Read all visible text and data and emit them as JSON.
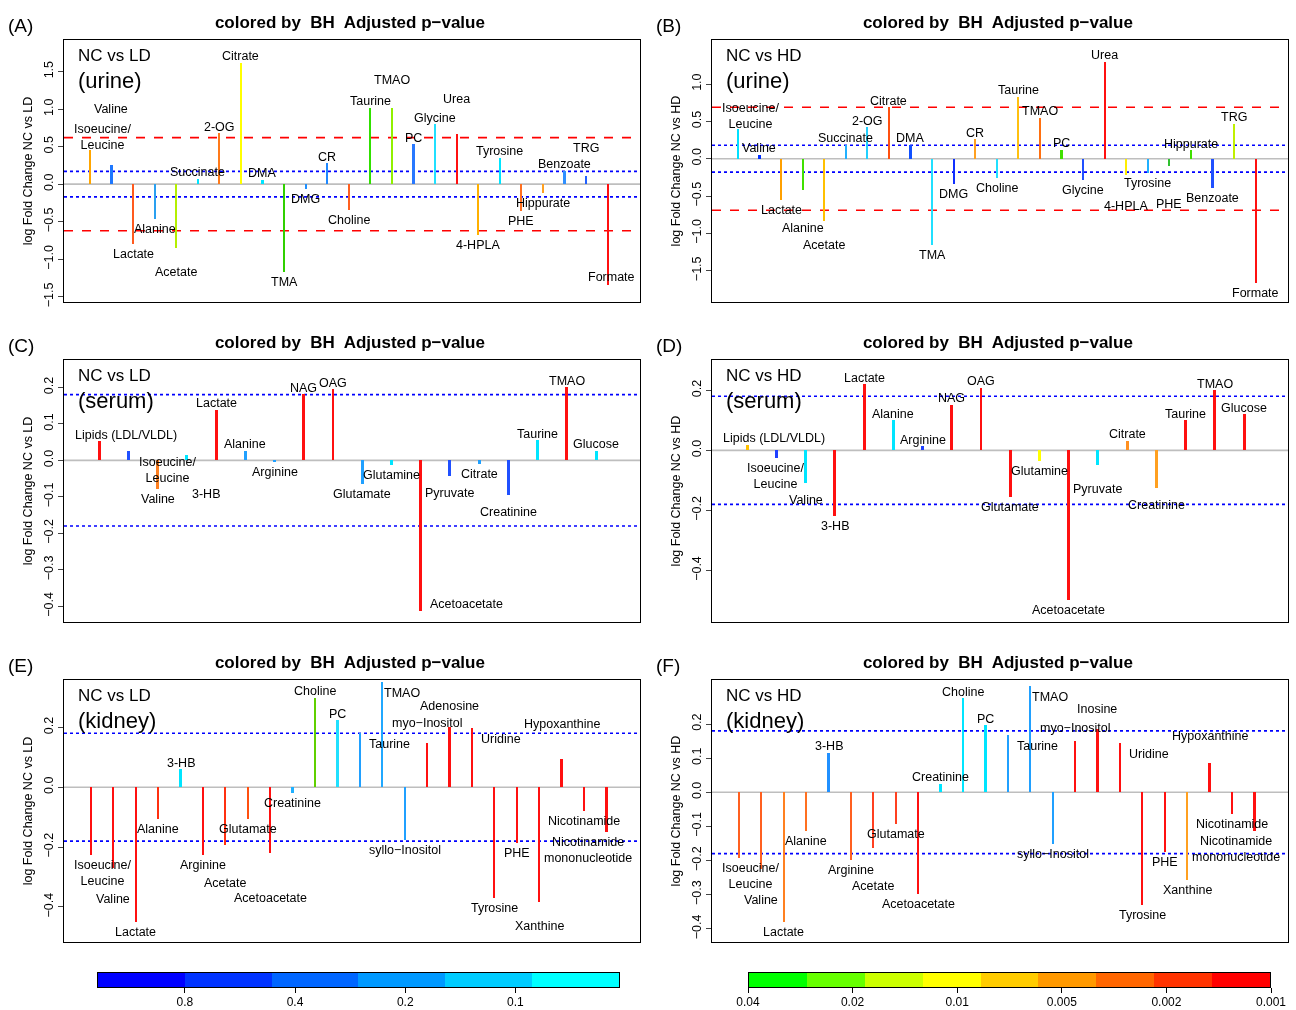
{
  "chart_data": [
    {
      "type": "bar",
      "title": "colored by  BH  Adjusted p−value",
      "ylabel": "log Fold Change NC vs LD",
      "annotations": [
        "(A)",
        "NC vs LD",
        "(urine)"
      ],
      "categories": [
        "Isoeucine/\nLeucine",
        "Valine",
        "Lactate",
        "Alanine",
        "Acetate",
        "Succinate",
        "2-OG",
        "Citrate",
        "DMA",
        "TMA",
        "DMG",
        "CR",
        "Choline",
        "Taurine",
        "TMAO",
        "PC",
        "Glycine",
        "Urea",
        "4-HPLA",
        "Tyrosine",
        "PHE",
        "Hippurate",
        "Benzoate",
        "TRG",
        "Formate"
      ],
      "values": [
        0.45,
        0.26,
        -0.8,
        -0.46,
        -0.85,
        0.07,
        0.68,
        1.62,
        0.06,
        -1.17,
        -0.07,
        0.28,
        -0.35,
        1.02,
        1.02,
        0.53,
        0.8,
        0.67,
        -0.68,
        0.35,
        -0.36,
        -0.12,
        0.18,
        0.11,
        -1.34
      ],
      "colors": [
        "#ffa500",
        "#1e78ff",
        "#ff5a1e",
        "#2aa0f0",
        "#b4f000",
        "#00e5ff",
        "#ff7a1a",
        "#ffff00",
        "#00e5ff",
        "#30d000",
        "#2090ff",
        "#1e88ff",
        "#ff6020",
        "#30e000",
        "#90f000",
        "#2878ff",
        "#20e0ff",
        "#ff1010",
        "#ffb000",
        "#00e5ff",
        "#ff7020",
        "#ffa020",
        "#3090ff",
        "#2060ff",
        "#ff1010"
      ],
      "ylim": [
        -1.57,
        1.92
      ],
      "yticks": [
        -1.5,
        {
          "value": -1,
          "label": "−1.0"
        },
        -0.5,
        {
          "value": 0,
          "label": "0.0"
        },
        0.5,
        {
          "value": 1,
          "label": "1.0"
        },
        1.5
      ],
      "tick_labels": "y",
      "ref_lines": [
        {
          "axis": "y",
          "value": 0,
          "color": "#bebebe",
          "line_style": "solid"
        },
        {
          "axis": "y",
          "value": 0.62,
          "color": "#ff0000",
          "line_style": "dashed"
        },
        {
          "axis": "y",
          "value": -0.62,
          "color": "#ff0000",
          "line_style": "dashed"
        },
        {
          "axis": "y",
          "value": 0.17,
          "color": "#0000ff",
          "line_style": "dotted"
        },
        {
          "axis": "y",
          "value": -0.17,
          "color": "#0000ff",
          "line_style": "dotted"
        }
      ]
    },
    {
      "type": "bar",
      "title": "colored by  BH  Adjusted p−value",
      "ylabel": "log Fold Change NC vs HD",
      "annotations": [
        "(B)",
        "NC vs HD",
        "(urine)"
      ],
      "categories": [
        "Isoeucine/\nLeucine",
        "Valine",
        "Lactate",
        "Alanine",
        "Acetate",
        "Succinate",
        "2-OG",
        "Citrate",
        "DMA",
        "TMA",
        "DMG",
        "CR",
        "Choline",
        "Taurine",
        "TMAO",
        "PC",
        "Glycine",
        "Urea",
        "4-HPLA",
        "Tyrosine",
        "PHE",
        "Hippurate",
        "Benzoate",
        "TRG",
        "Formate"
      ],
      "values": [
        0.4,
        0.05,
        -0.56,
        -0.42,
        -0.84,
        0.19,
        0.42,
        0.69,
        0.19,
        -1.15,
        -0.34,
        0.26,
        -0.26,
        0.83,
        0.55,
        0.12,
        -0.29,
        1.3,
        -0.22,
        -0.19,
        -0.1,
        0.11,
        -0.39,
        0.47,
        -1.66
      ],
      "colors": [
        "#00e0ff",
        "#0030ff",
        "#ffa000",
        "#40e000",
        "#ffc000",
        "#20b0ff",
        "#20d0ff",
        "#ff5010",
        "#1050ff",
        "#20e0ff",
        "#1030ff",
        "#ffa020",
        "#20e0ff",
        "#ffc010",
        "#ff7010",
        "#40e000",
        "#2050ff",
        "#ff1010",
        "#ffee00",
        "#20b0ff",
        "#30c030",
        "#40e000",
        "#2050ff",
        "#c0f000",
        "#ff1010"
      ],
      "ylim": [
        -1.92,
        1.59
      ],
      "yticks": [
        -1.5,
        {
          "value": -1,
          "label": "−1.0"
        },
        -0.5,
        {
          "value": 0,
          "label": "0.0"
        },
        0.5,
        {
          "value": 1,
          "label": "1.0"
        }
      ],
      "tick_labels": "y",
      "ref_lines": [
        {
          "axis": "y",
          "value": 0,
          "color": "#bebebe",
          "line_style": "solid"
        },
        {
          "axis": "y",
          "value": 0.69,
          "color": "#ff0000",
          "line_style": "dashed"
        },
        {
          "axis": "y",
          "value": -0.69,
          "color": "#ff0000",
          "line_style": "dashed"
        },
        {
          "axis": "y",
          "value": 0.18,
          "color": "#0000ff",
          "line_style": "dotted"
        },
        {
          "axis": "y",
          "value": -0.18,
          "color": "#0000ff",
          "line_style": "dotted"
        }
      ]
    },
    {
      "type": "bar",
      "title": "colored by  BH  Adjusted p−value",
      "ylabel": "log Fold Change NC vs LD",
      "annotations": [
        "(C)",
        "NC vs LD",
        "(serum)"
      ],
      "categories": [
        "Lipids (LDL/VLDL)",
        "Isoeucine/\nLeucine",
        "Valine",
        "3-HB",
        "Lactate",
        "Alanine",
        "Arginine",
        "NAG",
        "OAG",
        "Glutamate",
        "Glutamine",
        "Acetoacetate",
        "Pyruvate",
        "Citrate",
        "Creatinine",
        "Taurine",
        "TMAO",
        "Glucose"
      ],
      "values": [
        0.053,
        0.026,
        -0.078,
        0.015,
        0.139,
        0.026,
        -0.004,
        0.181,
        0.195,
        -0.065,
        -0.012,
        -0.413,
        -0.042,
        -0.009,
        -0.095,
        0.055,
        0.2,
        0.026
      ],
      "colors": [
        "#ff1010",
        "#2050ff",
        "#ff8020",
        "#00e5ff",
        "#ff1010",
        "#20a0ff",
        "#20a0ff",
        "#ff1010",
        "#ff1010",
        "#20a0ff",
        "#00e5ff",
        "#ff1010",
        "#2050ff",
        "#20a0ff",
        "#2050ff",
        "#00e5ff",
        "#ff1010",
        "#00e5ff"
      ],
      "ylim": [
        -0.443,
        0.275
      ],
      "yticks": [
        -0.4,
        -0.3,
        -0.2,
        -0.1,
        {
          "value": 0,
          "label": "0.0"
        },
        0.1,
        0.2
      ],
      "tick_labels": "y",
      "ref_lines": [
        {
          "axis": "y",
          "value": 0,
          "color": "#bebebe",
          "line_style": "solid"
        },
        {
          "axis": "y",
          "value": 0.18,
          "color": "#0000ff",
          "line_style": "dotted"
        },
        {
          "axis": "y",
          "value": -0.18,
          "color": "#0000ff",
          "line_style": "dotted"
        }
      ]
    },
    {
      "type": "bar",
      "title": "colored by  BH  Adjusted p−value",
      "ylabel": "log Fold Change NC vs HD",
      "annotations": [
        "(D)",
        "NC vs HD",
        "(serum)"
      ],
      "categories": [
        "Lipids (LDL/VLDL)",
        "Isoeucine/\nLeucine",
        "Valine",
        "3-HB",
        "Lactate",
        "Alanine",
        "Arginine",
        "NAG",
        "OAG",
        "Glutamate",
        "Glutamine",
        "Acetoacetate",
        "Pyruvate",
        "Citrate",
        "Creatinine",
        "Taurine",
        "TMAO",
        "Glucose"
      ],
      "values": [
        0.019,
        -0.027,
        -0.109,
        -0.22,
        0.221,
        0.1,
        0.013,
        0.152,
        0.208,
        -0.155,
        -0.035,
        -0.499,
        -0.049,
        0.032,
        -0.125,
        0.1,
        0.2,
        0.12
      ],
      "colors": [
        "#ffc000",
        "#2040ff",
        "#00e5ff",
        "#ff1010",
        "#ff1010",
        "#00e5ff",
        "#2040ff",
        "#ff1010",
        "#ff1010",
        "#ff1010",
        "#ffff00",
        "#ff1010",
        "#00e5ff",
        "#ff9020",
        "#ffa020",
        "#ff1010",
        "#ff1010",
        "#ff1010"
      ],
      "ylim": [
        -0.572,
        0.301
      ],
      "yticks": [
        -0.4,
        -0.2,
        {
          "value": 0,
          "label": "0.0"
        },
        0.2
      ],
      "tick_labels": "y",
      "ref_lines": [
        {
          "axis": "y",
          "value": 0,
          "color": "#bebebe",
          "line_style": "solid"
        },
        {
          "axis": "y",
          "value": 0.18,
          "color": "#0000ff",
          "line_style": "dotted"
        },
        {
          "axis": "y",
          "value": -0.18,
          "color": "#0000ff",
          "line_style": "dotted"
        }
      ]
    },
    {
      "type": "bar",
      "title": "colored by  BH  Adjusted p−value",
      "ylabel": "log Fold Change NC vs LD",
      "annotations": [
        "(E)",
        "NC vs LD",
        "(kidney)"
      ],
      "categories": [
        "Isoeucine/\nLeucine",
        "Valine",
        "Lactate",
        "Alanine",
        "3-HB",
        "Arginine",
        "Acetate",
        "Glutamate",
        "Acetoacetate",
        "Creatinine",
        "Choline",
        "PC",
        "Taurine",
        "TMAO",
        "syllo−Inositol",
        "myo−Inositol",
        "Adenosine",
        "Uridine",
        "Tyrosine",
        "PHE",
        "Xanthine",
        "Hypoxanthine",
        "Nicotinamide",
        "Nicotinamide\nmononucleotide"
      ],
      "values": [
        -0.228,
        -0.27,
        -0.449,
        -0.107,
        0.06,
        -0.228,
        -0.192,
        -0.107,
        -0.221,
        -0.021,
        0.299,
        0.224,
        0.181,
        0.352,
        -0.178,
        0.147,
        0.202,
        0.197,
        -0.37,
        -0.185,
        -0.382,
        0.095,
        -0.078,
        -0.15
      ],
      "colors": [
        "#ff1010",
        "#ff1010",
        "#ff1010",
        "#ff3010",
        "#00e5ff",
        "#ff1010",
        "#ff3010",
        "#ff5010",
        "#ff1010",
        "#20b0ff",
        "#60d000",
        "#20e0ff",
        "#20a0ff",
        "#20a8ff",
        "#20a0ff",
        "#ff1010",
        "#ff1010",
        "#ff1010",
        "#ff1010",
        "#ff1010",
        "#ff1010",
        "#ff1010",
        "#ff1010",
        "#ff1010"
      ],
      "ylim": [
        -0.517,
        0.358
      ],
      "yticks": [
        -0.4,
        -0.2,
        {
          "value": 0,
          "label": "0.0"
        },
        0.2
      ],
      "tick_labels": "y",
      "ref_lines": [
        {
          "axis": "y",
          "value": 0,
          "color": "#bebebe",
          "line_style": "solid"
        },
        {
          "axis": "y",
          "value": 0.18,
          "color": "#0000ff",
          "line_style": "dotted"
        },
        {
          "axis": "y",
          "value": -0.18,
          "color": "#0000ff",
          "line_style": "dotted"
        }
      ]
    },
    {
      "type": "bar",
      "title": "colored by  BH  Adjusted p−value",
      "ylabel": "log Fold Change NC vs HD",
      "annotations": [
        "(F)",
        "NC vs HD",
        "(kidney)"
      ],
      "categories": [
        "Isoeucine/\nLeucine",
        "Valine",
        "Lactate",
        "Alanine",
        "3-HB",
        "Arginine",
        "Acetate",
        "Glutamate",
        "Acetoacetate",
        "Creatinine",
        "Choline",
        "PC",
        "Taurine",
        "TMAO",
        "syllo−Inositol",
        "myo−Inositol",
        "Inosine",
        "Uridine",
        "Tyrosine",
        "PHE",
        "Xanthine",
        "Hypoxanthine",
        "Nicotinamide",
        "Nicotinamide\nmononucleotide"
      ],
      "values": [
        -0.194,
        -0.225,
        -0.379,
        -0.115,
        0.116,
        -0.198,
        -0.163,
        -0.094,
        -0.298,
        0.025,
        0.275,
        0.196,
        0.169,
        0.31,
        -0.153,
        0.15,
        0.184,
        0.143,
        -0.331,
        -0.175,
        -0.256,
        0.085,
        -0.063,
        -0.115
      ],
      "colors": [
        "#ff6020",
        "#ff6020",
        "#ff8020",
        "#ff7020",
        "#2090ff",
        "#ff6020",
        "#ff4020",
        "#ff4020",
        "#ff1010",
        "#00e5ff",
        "#00e5ff",
        "#00e5ff",
        "#20a0ff",
        "#20a0ff",
        "#20a0ff",
        "#ff1010",
        "#ff1010",
        "#ff1010",
        "#ff1010",
        "#ff1010",
        "#ffa020",
        "#ff1010",
        "#ff1010",
        "#ff1010"
      ],
      "ylim": [
        -0.439,
        0.329
      ],
      "yticks": [
        -0.4,
        -0.3,
        -0.2,
        -0.1,
        {
          "value": 0,
          "label": "0.0"
        },
        0.1,
        0.2
      ],
      "tick_labels": "y",
      "ref_lines": [
        {
          "axis": "y",
          "value": 0,
          "color": "#bebebe",
          "line_style": "solid"
        },
        {
          "axis": "y",
          "value": 0.18,
          "color": "#0000ff",
          "line_style": "dotted"
        },
        {
          "axis": "y",
          "value": -0.18,
          "color": "#0000ff",
          "line_style": "dotted"
        }
      ]
    },
    {
      "type": "other",
      "annotations": [
        "0.8",
        "0.4",
        "0.2",
        "0.1"
      ],
      "colors": [
        "#0000ff",
        "#0033ff",
        "#0066ff",
        "#0099ff",
        "#00ccff",
        "#00ffff"
      ]
    },
    {
      "type": "other",
      "annotations": [
        "0.04",
        "0.02",
        "0.01",
        "0.005",
        "0.002",
        "0.001"
      ],
      "colors": [
        "#00ff00",
        "#66ff00",
        "#ccff00",
        "#ffff00",
        "#ffcc00",
        "#ff9900",
        "#ff6600",
        "#ff3300",
        "#ff0000"
      ]
    }
  ]
}
